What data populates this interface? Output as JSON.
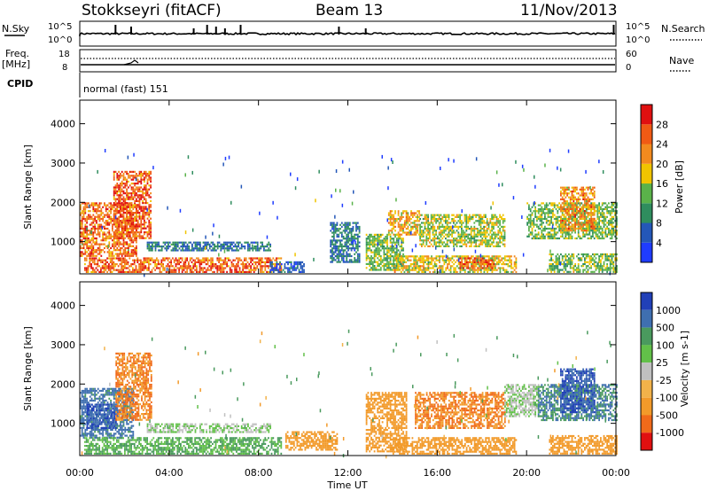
{
  "header": {
    "station": "Stokkseyri (fitACF)",
    "beam": "Beam 13",
    "date": "11/Nov/2013"
  },
  "noise_panel": {
    "left_label": "N.Sky",
    "left_ticks": [
      "10^5",
      "10^0"
    ],
    "right_ticks": [
      "10^5",
      "10^0"
    ],
    "right_label": "N.Search",
    "spike_times_h": [
      1.6,
      2.3,
      5.1,
      5.7,
      6.1,
      6.5,
      7.2,
      11.6,
      12.8,
      23.9
    ]
  },
  "freq_panel": {
    "left_label": "Freq.",
    "left_unit": "[MHz]",
    "left_ticks": [
      "18",
      "8"
    ],
    "right_ticks": [
      "60",
      "0"
    ],
    "right_label": "Nave"
  },
  "cpid": {
    "label": "CPID",
    "mode": "normal (fast) 151"
  },
  "power_panel": {
    "ylabel": "Slant Range [km]",
    "yticks": [
      1000,
      2000,
      3000,
      4000
    ],
    "cbar_label": "Power [dB]",
    "cbar_ticks": [
      "4",
      "8",
      "12",
      "16",
      "20",
      "24",
      "28"
    ],
    "cbar_colors": [
      "#1f3cff",
      "#2457b8",
      "#2f8d5e",
      "#5ab24a",
      "#f0c400",
      "#f28a1e",
      "#f05a14",
      "#e01010"
    ]
  },
  "velocity_panel": {
    "ylabel": "Slant Range [km]",
    "yticks": [
      1000,
      2000,
      3000,
      4000
    ],
    "cbar_label": "Velocity [m s-1]",
    "cbar_ticks": [
      "1000",
      "500",
      "100",
      "25",
      "-25",
      "-100",
      "-500",
      "-1000"
    ],
    "cbar_colors": [
      "#2140b8",
      "#3f6fb0",
      "#4a9a5e",
      "#62c049",
      "#c0c0c0",
      "#f2b24a",
      "#f29a2a",
      "#f06a1a",
      "#e01010"
    ]
  },
  "xaxis": {
    "label": "Time UT",
    "ticks": [
      "00:00",
      "04:00",
      "08:00",
      "12:00",
      "16:00",
      "20:00",
      "00:00"
    ]
  },
  "chart_data": {
    "type": "heatmap",
    "x_range_h": [
      0,
      24
    ],
    "y_range_km": [
      180,
      4600
    ],
    "power_regions": [
      {
        "t0": 0.0,
        "t1": 2.5,
        "r0": 650,
        "r1": 2000,
        "value": 24
      },
      {
        "t0": 1.5,
        "t1": 3.2,
        "r0": 1100,
        "r1": 2800,
        "value": 26
      },
      {
        "t0": 0.2,
        "t1": 9.0,
        "r0": 230,
        "r1": 600,
        "value": 25
      },
      {
        "t0": 3.0,
        "t1": 8.5,
        "r0": 800,
        "r1": 1000,
        "value": 8
      },
      {
        "t0": 8.5,
        "t1": 10.0,
        "r0": 250,
        "r1": 500,
        "value": 6
      },
      {
        "t0": 11.2,
        "t1": 12.5,
        "r0": 500,
        "r1": 1500,
        "value": 8
      },
      {
        "t0": 12.8,
        "t1": 14.5,
        "r0": 300,
        "r1": 1200,
        "value": 14
      },
      {
        "t0": 13.8,
        "t1": 15.2,
        "r0": 1200,
        "r1": 1800,
        "value": 20
      },
      {
        "t0": 14.0,
        "t1": 19.5,
        "r0": 250,
        "r1": 650,
        "value": 18
      },
      {
        "t0": 15.2,
        "t1": 19.0,
        "r0": 900,
        "r1": 1700,
        "value": 16
      },
      {
        "t0": 17.0,
        "t1": 18.5,
        "r0": 350,
        "r1": 600,
        "value": 26
      },
      {
        "t0": 20.0,
        "t1": 24.0,
        "r0": 1100,
        "r1": 2000,
        "value": 14
      },
      {
        "t0": 21.5,
        "t1": 23.0,
        "r0": 1300,
        "r1": 2400,
        "value": 22
      },
      {
        "t0": 21.0,
        "t1": 24.0,
        "r0": 250,
        "r1": 700,
        "value": 14
      }
    ],
    "velocity_regions": [
      {
        "t0": 0.0,
        "t1": 2.4,
        "r0": 650,
        "r1": 1900,
        "value": 600
      },
      {
        "t0": 0.3,
        "t1": 1.6,
        "r0": 900,
        "r1": 1500,
        "value": 1000
      },
      {
        "t0": 1.6,
        "t1": 3.2,
        "r0": 1100,
        "r1": 2800,
        "value": -500
      },
      {
        "t0": 0.2,
        "t1": 9.0,
        "r0": 230,
        "r1": 650,
        "value": 100
      },
      {
        "t0": 3.0,
        "t1": 8.5,
        "r0": 780,
        "r1": 1000,
        "value": 25
      },
      {
        "t0": 9.2,
        "t1": 11.5,
        "r0": 350,
        "r1": 800,
        "value": -300
      },
      {
        "t0": 12.8,
        "t1": 14.6,
        "r0": 300,
        "r1": 1800,
        "value": -300
      },
      {
        "t0": 14.0,
        "t1": 19.5,
        "r0": 250,
        "r1": 650,
        "value": -200
      },
      {
        "t0": 15.0,
        "t1": 19.0,
        "r0": 900,
        "r1": 1800,
        "value": -500
      },
      {
        "t0": 19.0,
        "t1": 20.5,
        "r0": 1200,
        "r1": 2000,
        "value": 25
      },
      {
        "t0": 20.5,
        "t1": 24.0,
        "r0": 1100,
        "r1": 2000,
        "value": 500
      },
      {
        "t0": 21.5,
        "t1": 23.0,
        "r0": 1300,
        "r1": 2400,
        "value": 1000
      },
      {
        "t0": 21.0,
        "t1": 24.0,
        "r0": 250,
        "r1": 700,
        "value": -300
      }
    ]
  }
}
